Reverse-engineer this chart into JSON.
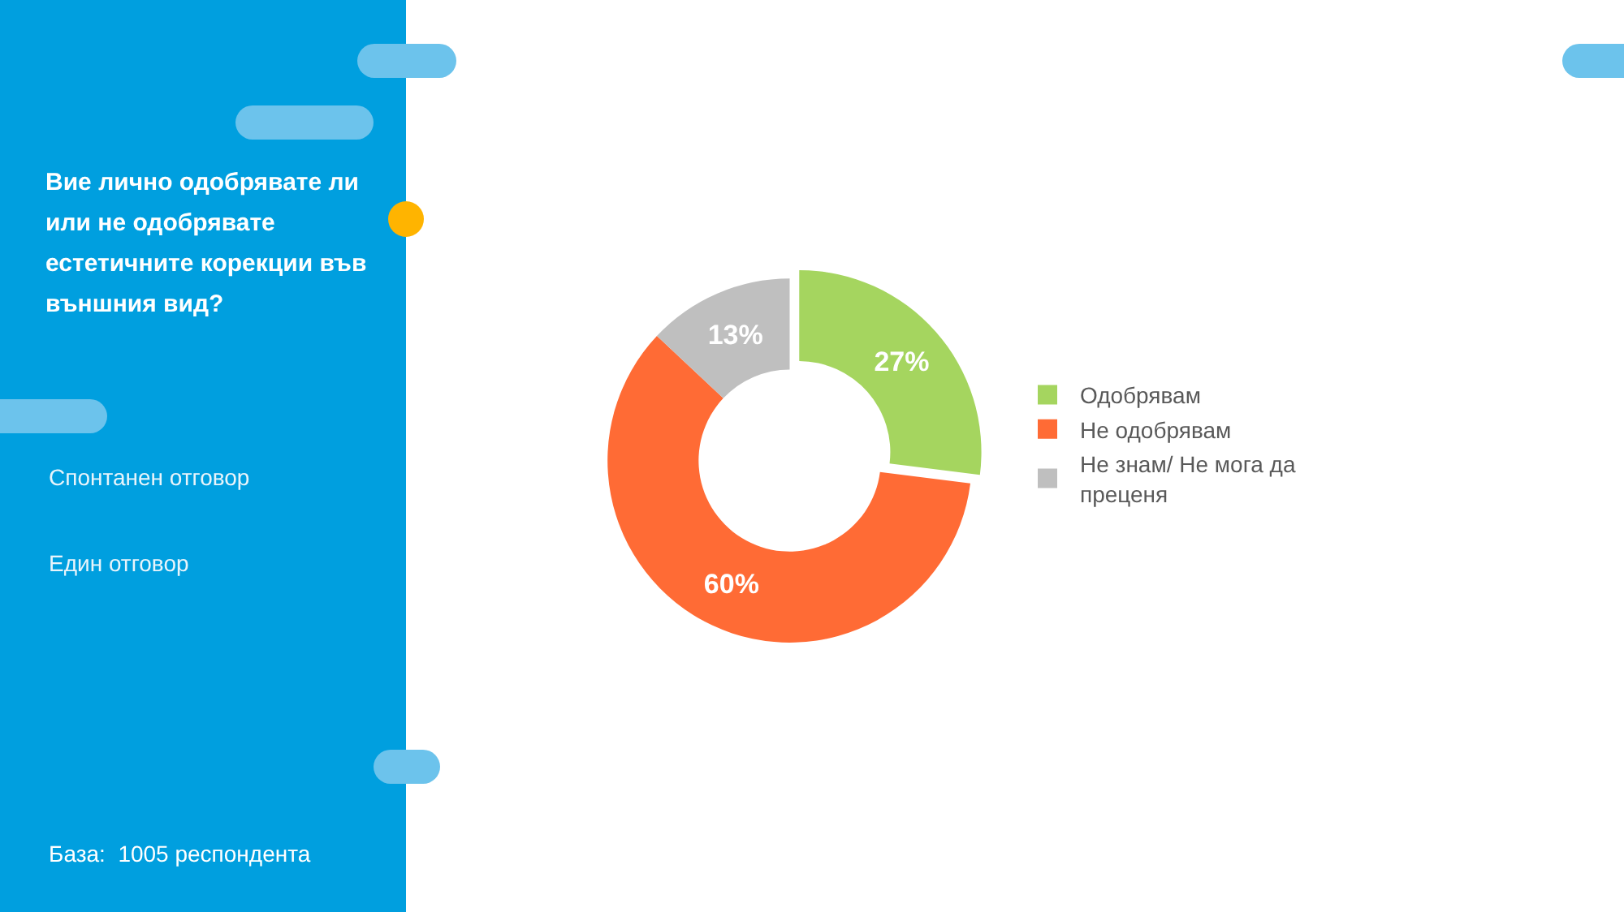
{
  "chart_data": {
    "type": "donut",
    "title": "Вие лично одобрявате ли или не одобрявате естетичните корекции във външния вид?",
    "annotations": [
      "Спонтанен отговор",
      "Един отговор",
      "База:  1005 респондента"
    ],
    "categories": [
      "Одобрявам",
      "Не одобрявам",
      "Не знам/ Не мога да преценя"
    ],
    "values": [
      27,
      60,
      13
    ],
    "value_labels": [
      "27%",
      "60%",
      "13%"
    ],
    "colors": [
      "#a5d55f",
      "#ff6b35",
      "#bfbfbf"
    ],
    "legend": "right"
  }
}
